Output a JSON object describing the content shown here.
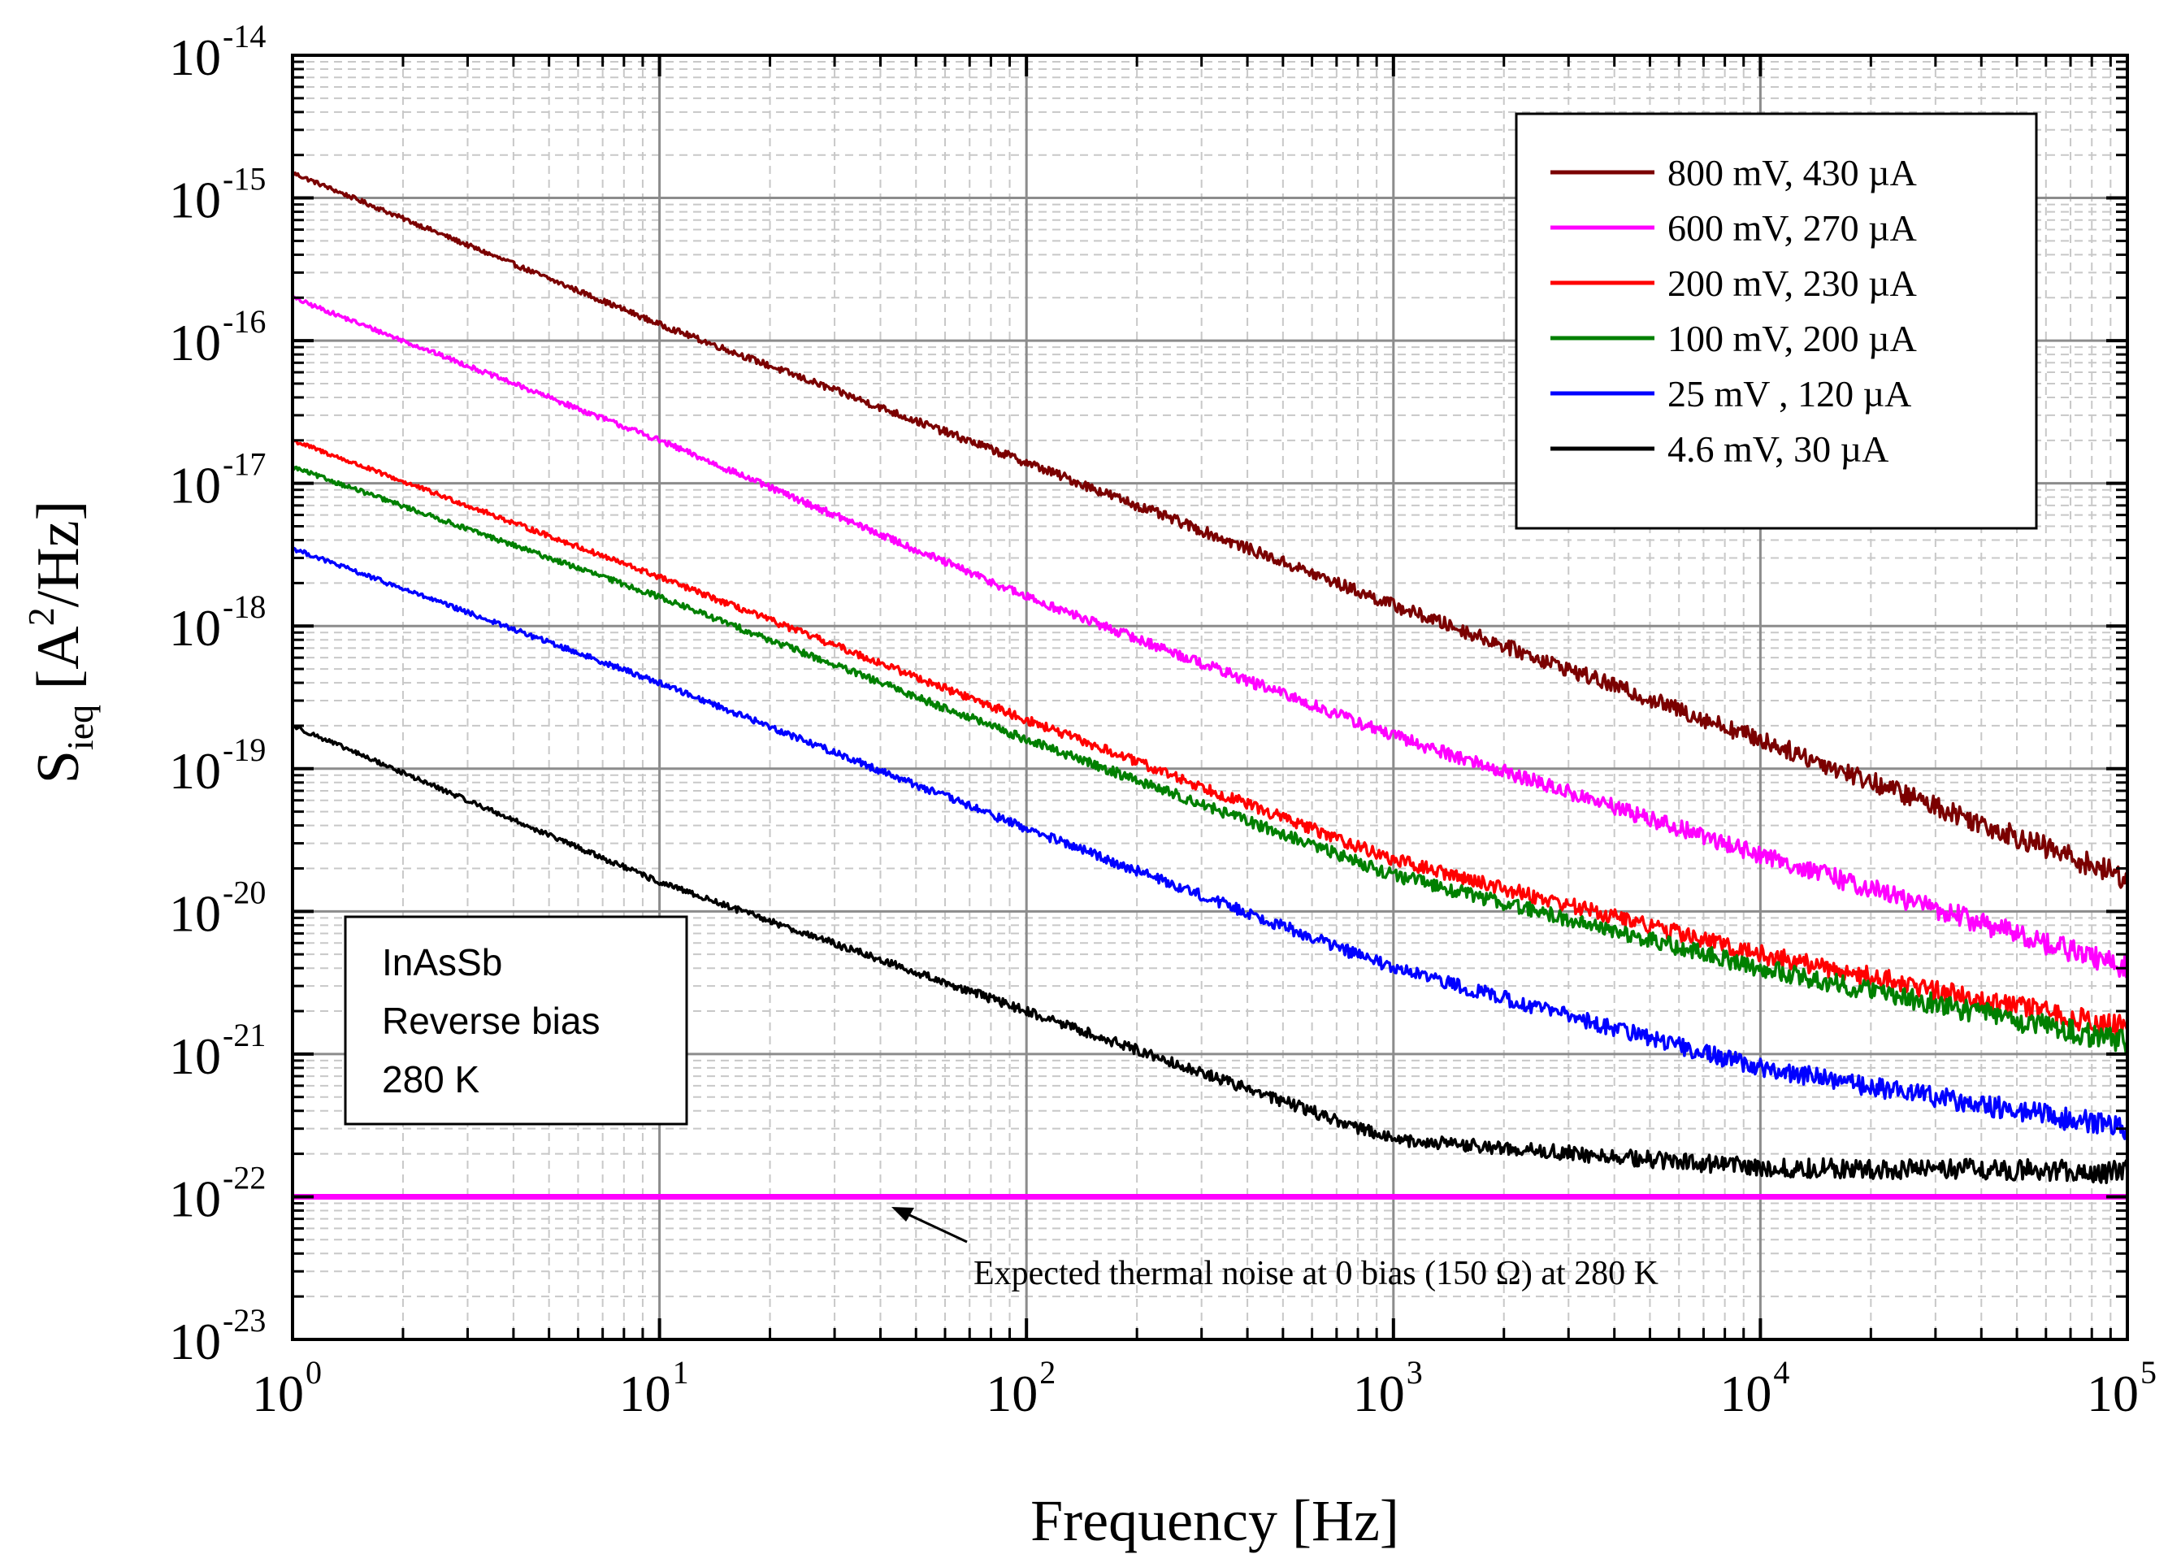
{
  "chart_data": {
    "type": "line",
    "x_scale": "log",
    "y_scale": "log",
    "xlabel": "Frequency [Hz]",
    "ylabel": {
      "main": "S",
      "sub": "ieq",
      "unit_open": " [A",
      "unit_sup": "2",
      "unit_close": "/Hz]"
    },
    "xlim": [
      1,
      100000
    ],
    "ylim": [
      1e-23,
      1e-14
    ],
    "x_ticks": [
      {
        "base": "10",
        "exp": "0",
        "value": 1
      },
      {
        "base": "10",
        "exp": "1",
        "value": 10
      },
      {
        "base": "10",
        "exp": "2",
        "value": 100
      },
      {
        "base": "10",
        "exp": "3",
        "value": 1000
      },
      {
        "base": "10",
        "exp": "4",
        "value": 10000
      },
      {
        "base": "10",
        "exp": "5",
        "value": 100000
      }
    ],
    "y_ticks": [
      {
        "base": "10",
        "exp": "-14",
        "value": 1e-14
      },
      {
        "base": "10",
        "exp": "-15",
        "value": 1e-15
      },
      {
        "base": "10",
        "exp": "-16",
        "value": 1e-16
      },
      {
        "base": "10",
        "exp": "-17",
        "value": 1e-17
      },
      {
        "base": "10",
        "exp": "-18",
        "value": 1e-18
      },
      {
        "base": "10",
        "exp": "-19",
        "value": 1e-19
      },
      {
        "base": "10",
        "exp": "-20",
        "value": 1e-20
      },
      {
        "base": "10",
        "exp": "-21",
        "value": 1e-21
      },
      {
        "base": "10",
        "exp": "-22",
        "value": 1e-22
      },
      {
        "base": "10",
        "exp": "-23",
        "value": 1e-23
      }
    ],
    "grid": true,
    "legend_position": "top-right",
    "series": [
      {
        "name": "800 mV, 430 µA",
        "color": "#7b0000",
        "x": [
          1,
          10,
          100,
          1000,
          10000,
          100000
        ],
        "y": [
          1.5e-15,
          1.3e-16,
          1.4e-17,
          1.4e-18,
          1.6e-19,
          1.7e-20
        ]
      },
      {
        "name": "600 mV, 270 µA",
        "color": "#ff00ff",
        "x": [
          1,
          10,
          100,
          1000,
          10000,
          100000
        ],
        "y": [
          2e-16,
          2e-17,
          1.6e-18,
          1.7e-19,
          2.5e-20,
          4e-21
        ]
      },
      {
        "name": "200 mV, 230 µA",
        "color": "#ff0000",
        "x": [
          1,
          10,
          100,
          1000,
          10000,
          100000
        ],
        "y": [
          2e-17,
          2.2e-18,
          2.2e-19,
          2.3e-20,
          5e-21,
          1.5e-21
        ]
      },
      {
        "name": "100 mV, 200 µA",
        "color": "#008000",
        "x": [
          1,
          10,
          100,
          1000,
          10000,
          100000
        ],
        "y": [
          1.3e-17,
          1.6e-18,
          1.6e-19,
          1.8e-20,
          4e-21,
          1.2e-21
        ]
      },
      {
        "name": "25 mV , 120 µA",
        "color": "#0000ff",
        "x": [
          1,
          10,
          100,
          1000,
          10000,
          100000
        ],
        "y": [
          3.5e-18,
          4e-19,
          3.8e-20,
          4e-21,
          8e-22,
          3e-22
        ]
      },
      {
        "name": "4.6 mV, 30 µA",
        "color": "#000000",
        "x": [
          1,
          10,
          100,
          1000,
          10000,
          100000
        ],
        "y": [
          2e-19,
          1.6e-20,
          2e-21,
          2.5e-22,
          1.6e-22,
          1.5e-22
        ]
      }
    ],
    "reference_line": {
      "name": "Expected thermal noise at 0 bias (150 Ω) at 280 K",
      "color": "#ff00ff",
      "value": 1e-22
    },
    "annotations": {
      "sample": [
        "InAsSb",
        "Reverse bias",
        "280 K"
      ],
      "thermal_note": "Expected thermal noise at 0 bias (150 Ω) at 280 K"
    }
  }
}
